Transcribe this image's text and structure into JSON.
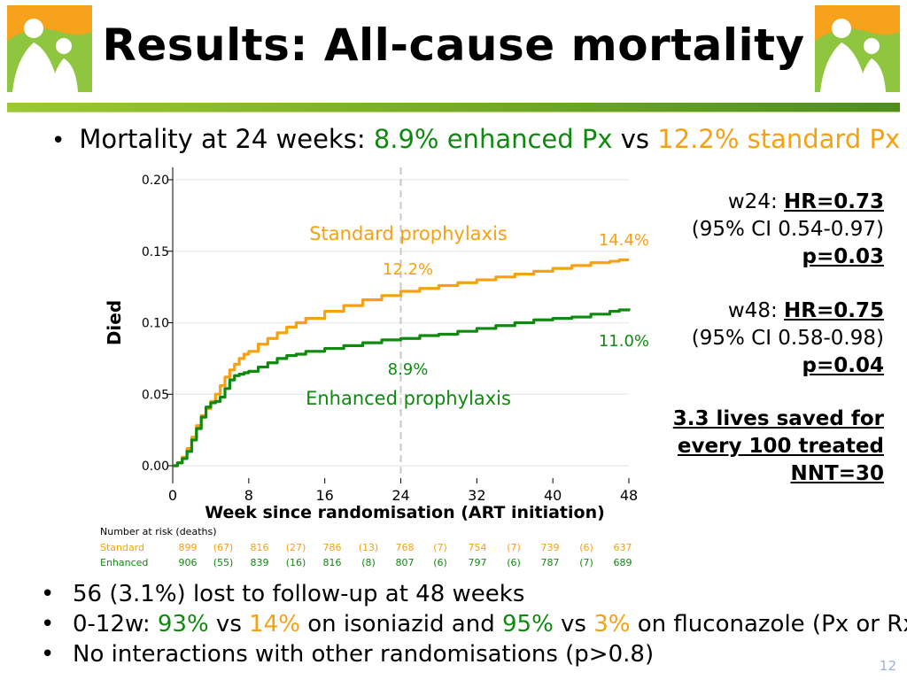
{
  "title": "Results: All-cause mortality",
  "headline": {
    "prefix": "Mortality at 24 weeks: ",
    "enhanced_pct": "8.9%",
    "enhanced_label": " enhanced Px",
    "vs": " vs ",
    "standard_pct": "12.2%",
    "standard_label": " standard Px"
  },
  "stats": {
    "w24_label": "w24: ",
    "w24_hr": "HR=0.73",
    "w24_ci": "(95% CI 0.54-0.97)",
    "w24_p": "p=0.03",
    "w48_label": "w48: ",
    "w48_hr": "HR=0.75",
    "w48_ci": "(95% CI 0.58-0.98)",
    "w48_p": "p=0.04",
    "lives_line1": "3.3 lives saved for",
    "lives_line2": "every 100 treated",
    "nnt": "NNT=30"
  },
  "colors": {
    "standard": "#f5a112",
    "enhanced": "#0e8a0e",
    "accent_bar": "#6aa324",
    "page_number": "#9ab2d8"
  },
  "chart_data": {
    "type": "line",
    "title": "",
    "xlabel": "Week since randomisation (ART initiation)",
    "ylabel": "Died",
    "xlim": [
      0,
      48
    ],
    "ylim": [
      0,
      0.2
    ],
    "xticks": [
      "0",
      "8",
      "16",
      "24",
      "32",
      "40",
      "48"
    ],
    "xtick_values": [
      0,
      8,
      16,
      24,
      32,
      40,
      48
    ],
    "yticks": [
      "0.00",
      "0.05",
      "0.10",
      "0.15",
      "0.20"
    ],
    "ytick_values": [
      0,
      0.05,
      0.1,
      0.15,
      0.2
    ],
    "reference_line_x": 24,
    "series": [
      {
        "name": "Standard prophylaxis",
        "color": "#f5a112",
        "x": [
          0,
          0.5,
          1,
          1.5,
          2,
          2.5,
          3,
          3.5,
          4,
          4.5,
          5,
          5.5,
          6,
          6.5,
          7,
          7.5,
          8,
          9,
          10,
          11,
          12,
          13,
          14,
          16,
          18,
          20,
          22,
          24,
          26,
          28,
          30,
          32,
          34,
          36,
          38,
          40,
          42,
          44,
          46,
          47,
          48
        ],
        "y": [
          0,
          0.002,
          0.006,
          0.012,
          0.02,
          0.028,
          0.035,
          0.04,
          0.045,
          0.05,
          0.056,
          0.062,
          0.067,
          0.071,
          0.075,
          0.078,
          0.08,
          0.085,
          0.089,
          0.093,
          0.097,
          0.1,
          0.103,
          0.108,
          0.112,
          0.116,
          0.119,
          0.122,
          0.124,
          0.126,
          0.128,
          0.13,
          0.132,
          0.134,
          0.136,
          0.138,
          0.14,
          0.142,
          0.143,
          0.144,
          0.144
        ]
      },
      {
        "name": "Enhanced prophylaxis",
        "color": "#0e8a0e",
        "x": [
          0,
          0.5,
          1,
          1.5,
          2,
          2.5,
          3,
          3.5,
          4,
          4.5,
          5,
          5.5,
          6,
          6.5,
          7,
          7.5,
          8,
          9,
          10,
          11,
          12,
          13,
          14,
          16,
          18,
          20,
          22,
          24,
          26,
          28,
          30,
          32,
          34,
          36,
          38,
          40,
          42,
          44,
          46,
          47,
          48
        ],
        "y": [
          0,
          0.002,
          0.005,
          0.01,
          0.018,
          0.026,
          0.034,
          0.041,
          0.044,
          0.045,
          0.048,
          0.054,
          0.06,
          0.063,
          0.064,
          0.065,
          0.066,
          0.069,
          0.072,
          0.075,
          0.077,
          0.078,
          0.08,
          0.082,
          0.084,
          0.086,
          0.088,
          0.089,
          0.091,
          0.092,
          0.094,
          0.096,
          0.098,
          0.1,
          0.102,
          0.103,
          0.104,
          0.106,
          0.108,
          0.109,
          0.11
        ]
      }
    ],
    "annotations": {
      "standard_label": "Standard prophylaxis",
      "standard_24": "12.2%",
      "standard_48": "14.4%",
      "enhanced_label": "Enhanced prophylaxis",
      "enhanced_24": "8.9%",
      "enhanced_48": "11.0%"
    },
    "risk_table": {
      "header": "Number at risk (deaths)",
      "rows": [
        {
          "name": "Standard",
          "values": [
            "899",
            "(67)",
            "816",
            "(27)",
            "786",
            "(13)",
            "768",
            "(7)",
            "754",
            "(7)",
            "739",
            "(6)",
            "637"
          ]
        },
        {
          "name": "Enhanced",
          "values": [
            "906",
            "(55)",
            "839",
            "(16)",
            "816",
            "(8)",
            "807",
            "(6)",
            "797",
            "(6)",
            "787",
            "(7)",
            "689"
          ]
        }
      ]
    }
  },
  "bullets": {
    "b1": "56 (3.1%) lost to follow-up at 48 weeks",
    "b2_prefix": "0-12w: ",
    "b2_inh_enh": "93%",
    "b2_vs1": " vs ",
    "b2_inh_std": "14%",
    "b2_mid": " on isoniazid and ",
    "b2_flu_enh": "95%",
    "b2_vs2": " vs ",
    "b2_flu_std": "3%",
    "b2_suffix": " on fluconazole (Px or Rx)",
    "b3": "No interactions with other randomisations (p>0.8)"
  },
  "page_number": "12"
}
